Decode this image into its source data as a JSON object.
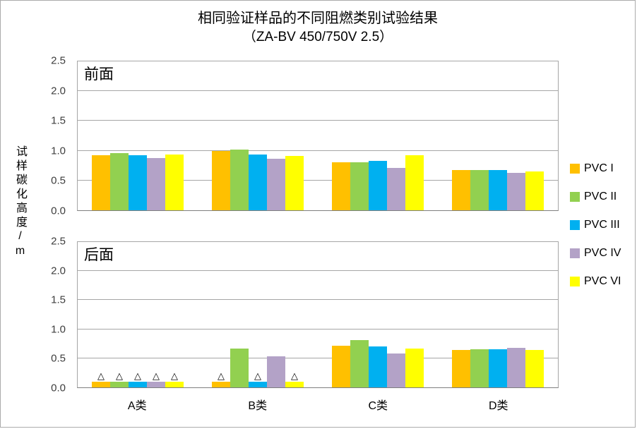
{
  "title": {
    "line1": "相同验证样品的不同阻燃类别试验结果",
    "line2": "（ZA-BV 450/750V 2.5）"
  },
  "y_axis": {
    "label": "试样碳化高度/m",
    "tick_labels": [
      "0.0",
      "0.5",
      "1.0",
      "1.5",
      "2.0",
      "2.5"
    ],
    "tick_step": 0.5,
    "max": 2.5
  },
  "x_axis": {
    "categories": [
      "A类",
      "B类",
      "C类",
      "D类"
    ]
  },
  "legend": {
    "position": "right",
    "items": [
      {
        "name": "PVC I",
        "color": "#FFC000"
      },
      {
        "name": "PVC II",
        "color": "#92D050"
      },
      {
        "name": "PVC III",
        "color": "#00B0F0"
      },
      {
        "name": "PVC IV",
        "color": "#B3A2C7"
      },
      {
        "name": "PVC VI",
        "color": "#FFFF00"
      }
    ]
  },
  "chart_data": [
    {
      "type": "bar",
      "panel_label": "前面",
      "categories": [
        "A类",
        "B类",
        "C类",
        "D类"
      ],
      "ylim": [
        0,
        2.5
      ],
      "grid": true,
      "series": [
        {
          "name": "PVC I",
          "values": [
            0.92,
            1.0,
            0.8,
            0.67
          ]
        },
        {
          "name": "PVC II",
          "values": [
            0.96,
            1.02,
            0.81,
            0.67
          ]
        },
        {
          "name": "PVC III",
          "values": [
            0.93,
            0.94,
            0.83,
            0.67
          ]
        },
        {
          "name": "PVC IV",
          "values": [
            0.88,
            0.87,
            0.71,
            0.63
          ]
        },
        {
          "name": "PVC VI",
          "values": [
            0.94,
            0.91,
            0.93,
            0.65
          ]
        }
      ]
    },
    {
      "type": "bar",
      "panel_label": "后面",
      "categories": [
        "A类",
        "B类",
        "C类",
        "D类"
      ],
      "ylim": [
        0,
        2.5
      ],
      "grid": true,
      "marker_glyph": "△",
      "series": [
        {
          "name": "PVC I",
          "values": [
            0.1,
            0.1,
            0.72,
            0.64
          ],
          "triangle_markers": [
            true,
            true,
            false,
            false
          ]
        },
        {
          "name": "PVC II",
          "values": [
            0.1,
            0.67,
            0.81,
            0.65
          ],
          "triangle_markers": [
            true,
            false,
            false,
            false
          ]
        },
        {
          "name": "PVC III",
          "values": [
            0.1,
            0.1,
            0.71,
            0.65
          ],
          "triangle_markers": [
            true,
            true,
            false,
            false
          ]
        },
        {
          "name": "PVC IV",
          "values": [
            0.1,
            0.53,
            0.58,
            0.68
          ],
          "triangle_markers": [
            true,
            false,
            false,
            false
          ]
        },
        {
          "name": "PVC VI",
          "values": [
            0.1,
            0.1,
            0.67,
            0.64
          ],
          "triangle_markers": [
            true,
            true,
            false,
            false
          ]
        }
      ]
    }
  ]
}
